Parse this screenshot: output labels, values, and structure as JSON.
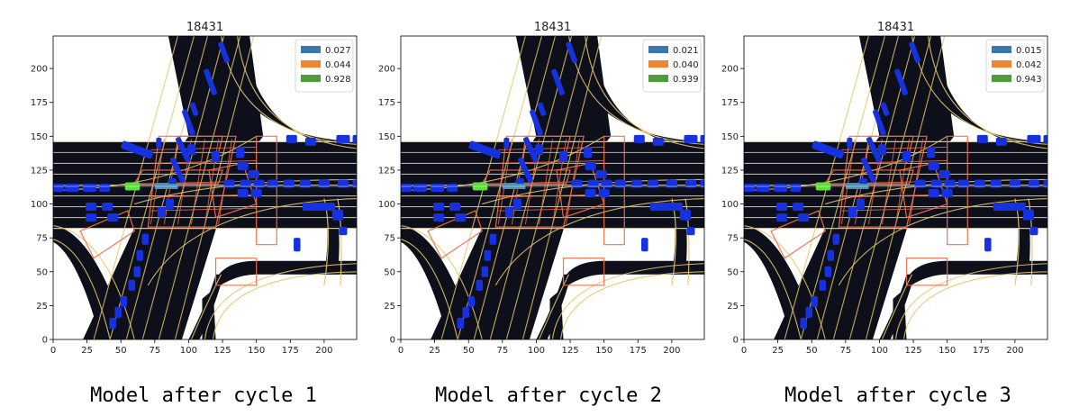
{
  "chart_data": [
    {
      "type": "heatmap",
      "title": "18431",
      "xlim": [
        0,
        224
      ],
      "ylim": [
        0,
        224
      ],
      "xticks": [
        0,
        25,
        50,
        75,
        100,
        125,
        150,
        175,
        200
      ],
      "yticks": [
        0,
        25,
        50,
        75,
        100,
        125,
        150,
        175,
        200
      ],
      "legend": {
        "placement": "top-right",
        "entries": [
          {
            "label": "0.027",
            "color": "#3a76b0"
          },
          {
            "label": "0.044",
            "color": "#ee8535"
          },
          {
            "label": "0.928",
            "color": "#4e9c3c"
          }
        ]
      },
      "caption": "Model after cycle 1"
    },
    {
      "type": "heatmap",
      "title": "18431",
      "xlim": [
        0,
        224
      ],
      "ylim": [
        0,
        224
      ],
      "xticks": [
        0,
        25,
        50,
        75,
        100,
        125,
        150,
        175,
        200
      ],
      "yticks": [
        0,
        25,
        50,
        75,
        100,
        125,
        150,
        175,
        200
      ],
      "legend": {
        "placement": "top-right",
        "entries": [
          {
            "label": "0.021",
            "color": "#3a76b0"
          },
          {
            "label": "0.040",
            "color": "#ee8535"
          },
          {
            "label": "0.939",
            "color": "#4e9c3c"
          }
        ]
      },
      "caption": "Model after cycle 2"
    },
    {
      "type": "heatmap",
      "title": "18431",
      "xlim": [
        0,
        224
      ],
      "ylim": [
        0,
        224
      ],
      "xticks": [
        0,
        25,
        50,
        75,
        100,
        125,
        150,
        175,
        200
      ],
      "yticks": [
        0,
        25,
        50,
        75,
        100,
        125,
        150,
        175,
        200
      ],
      "legend": {
        "placement": "top-right",
        "entries": [
          {
            "label": "0.015",
            "color": "#3a76b0"
          },
          {
            "label": "0.042",
            "color": "#ee8535"
          },
          {
            "label": "0.943",
            "color": "#4e9c3c"
          }
        ]
      },
      "caption": "Model after cycle 3"
    }
  ],
  "scene": {
    "road_color": "#0d0f1a",
    "lane_color": "#e3c56a",
    "crosswalk_color": "#f07048",
    "vehicle_color": "#1632e0",
    "ego_color": "#5adf3a",
    "ego_heading_color": "#4a90b8"
  }
}
